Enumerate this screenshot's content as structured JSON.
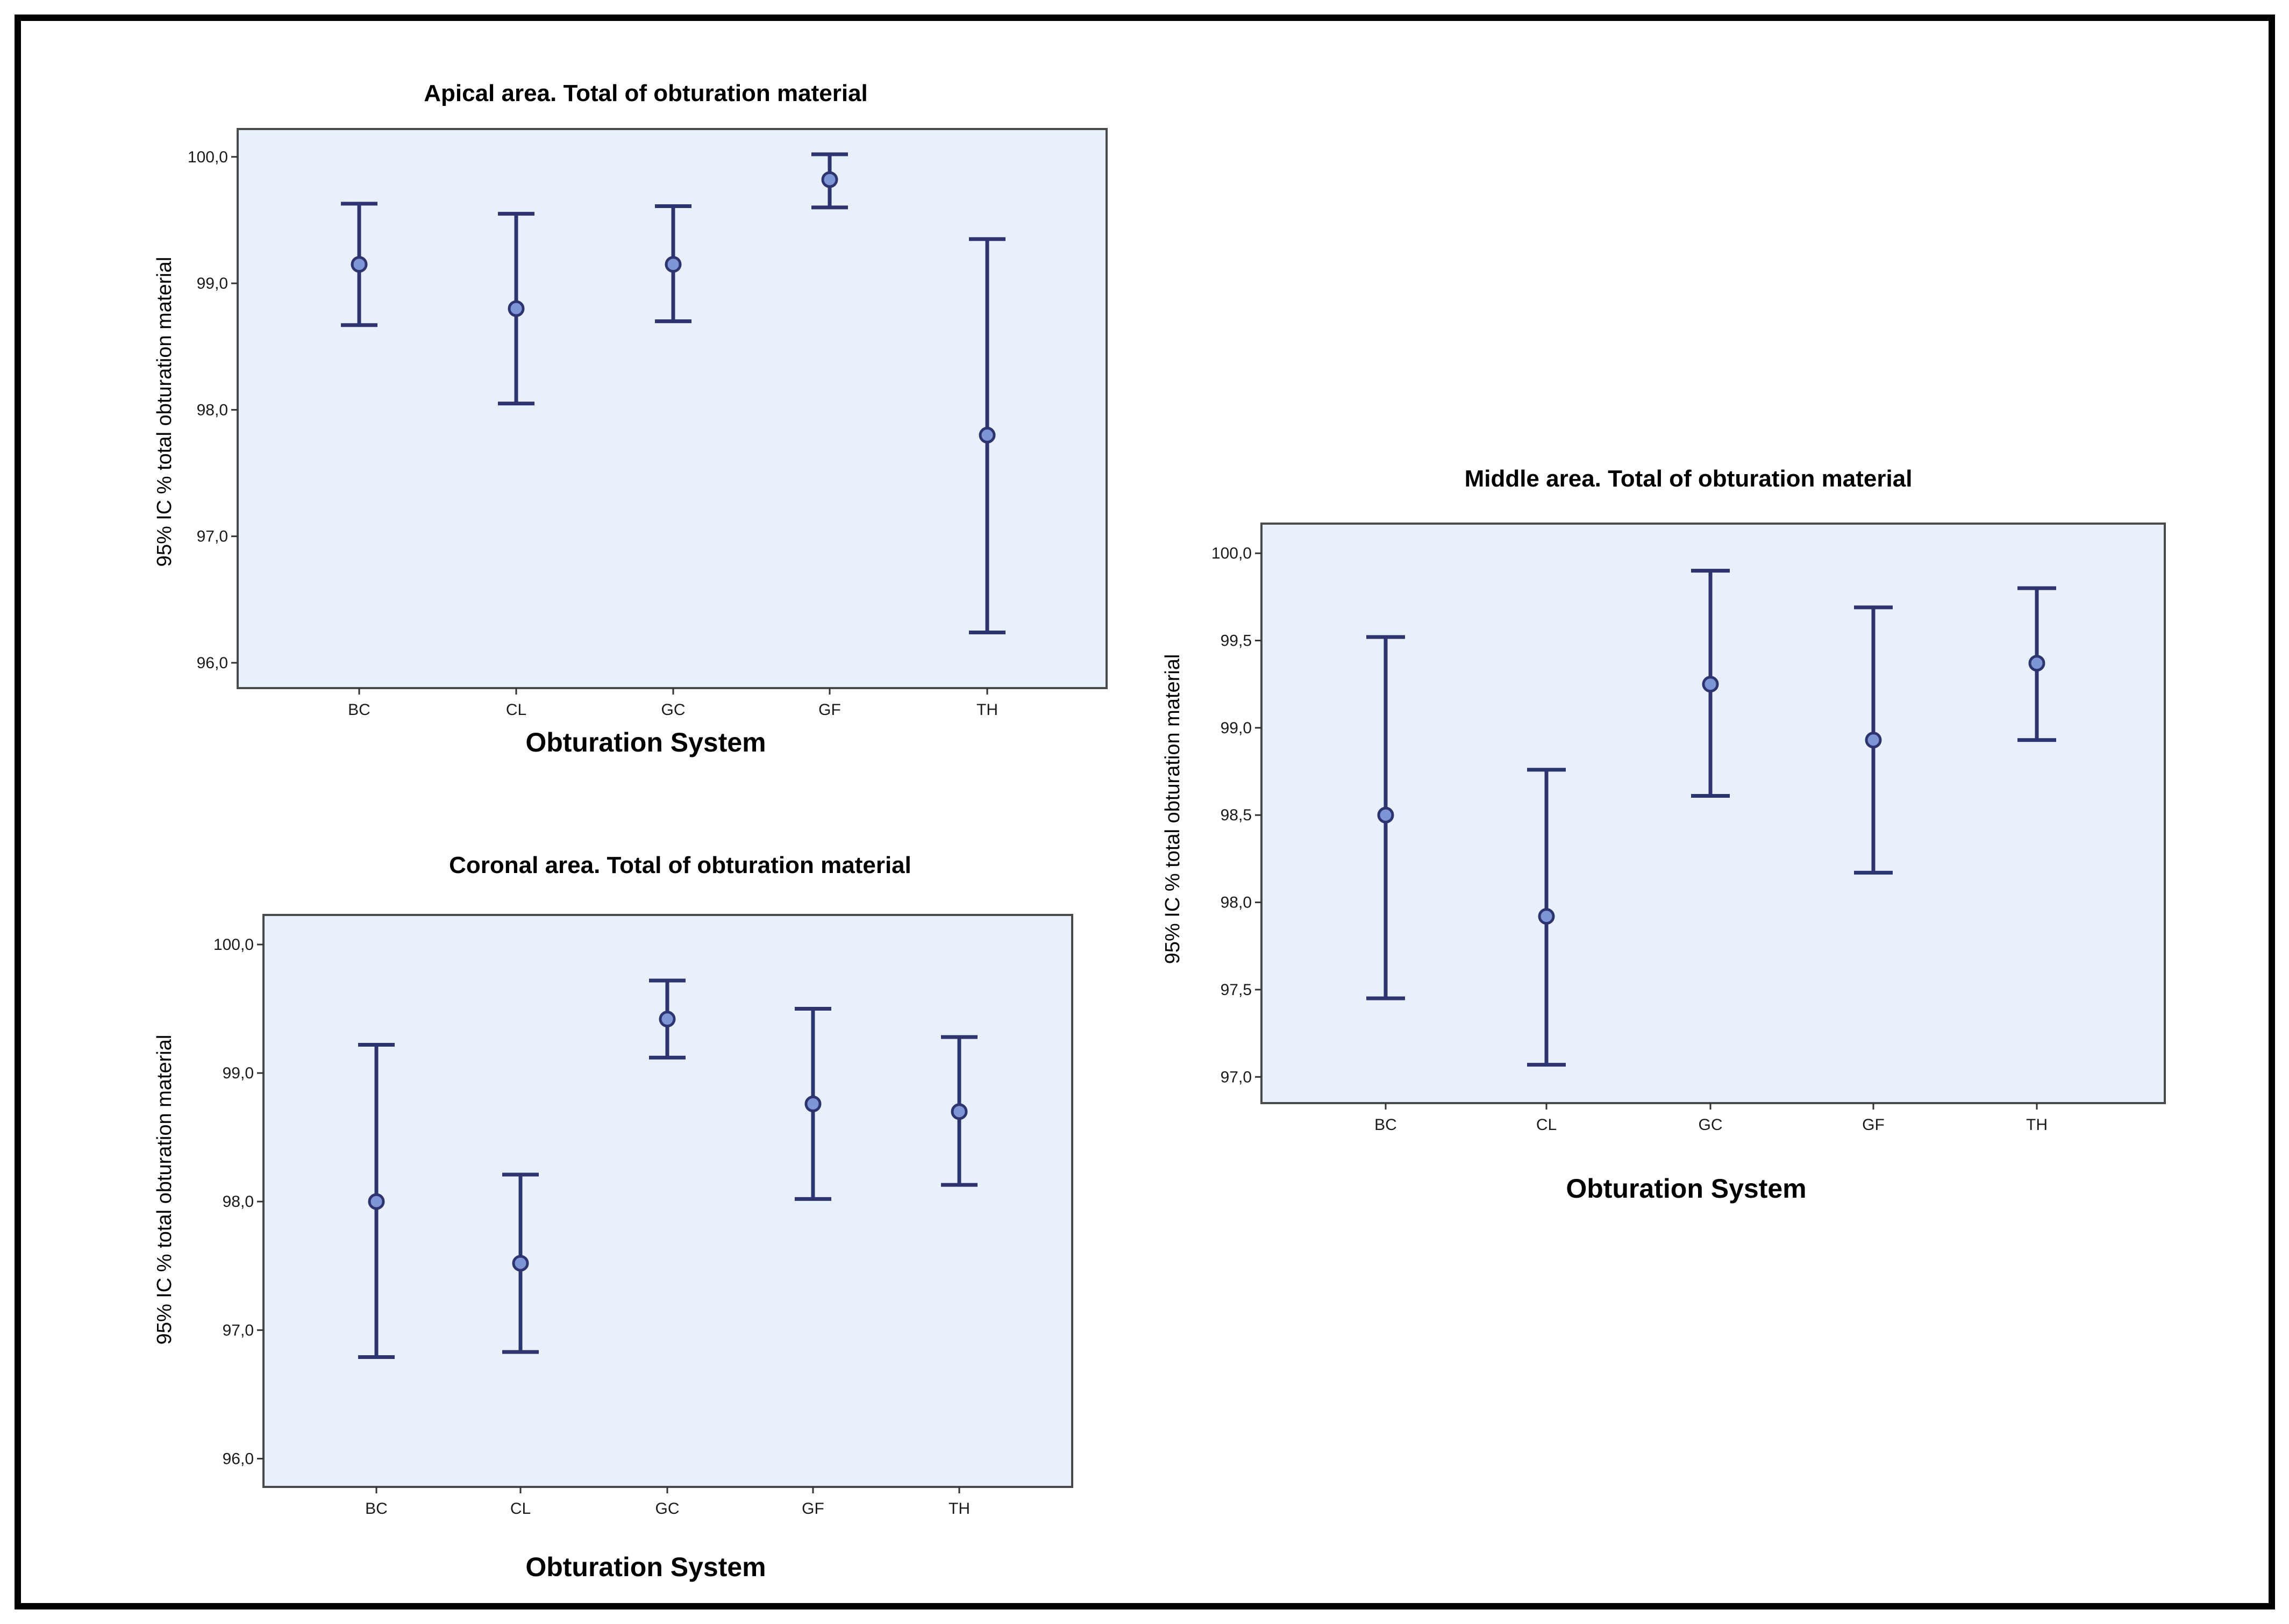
{
  "chart_data": [
    {
      "type": "errorbar",
      "title": "Apical area. Total of obturation material",
      "xlabel": "Obturation System",
      "ylabel": "95% IC % total obturation material",
      "categories": [
        "BC",
        "CL",
        "GC",
        "GF",
        "TH"
      ],
      "means": [
        99.15,
        98.8,
        99.15,
        99.82,
        97.8
      ],
      "lower": [
        98.67,
        98.05,
        98.7,
        99.6,
        96.24
      ],
      "upper": [
        99.63,
        99.55,
        99.61,
        100.02,
        99.35
      ],
      "ylim": [
        95.8,
        100.22
      ],
      "yticks": [
        96.0,
        97.0,
        98.0,
        99.0,
        100.0
      ],
      "ytick_labels": [
        "96,0",
        "97,0",
        "98,0",
        "99,0",
        "100,0"
      ]
    },
    {
      "type": "errorbar",
      "title": "Coronal area. Total of obturation material",
      "xlabel": "Obturation System",
      "ylabel": "95% IC % total obturation material",
      "categories": [
        "BC",
        "CL",
        "GC",
        "GF",
        "TH"
      ],
      "means": [
        98.0,
        97.52,
        99.42,
        98.76,
        98.7
      ],
      "lower": [
        96.79,
        96.83,
        99.12,
        98.02,
        98.13
      ],
      "upper": [
        99.22,
        98.21,
        99.72,
        99.5,
        99.28
      ],
      "ylim": [
        95.78,
        100.23
      ],
      "yticks": [
        96.0,
        97.0,
        98.0,
        99.0,
        100.0
      ],
      "ytick_labels": [
        "96,0",
        "97,0",
        "98,0",
        "99,0",
        "100,0"
      ]
    },
    {
      "type": "errorbar",
      "title": "Middle area. Total of obturation material",
      "xlabel": "Obturation System",
      "ylabel": "95% IC % total obturation material",
      "categories": [
        "BC",
        "CL",
        "GC",
        "GF",
        "TH"
      ],
      "means": [
        98.5,
        97.92,
        99.25,
        98.93,
        99.37
      ],
      "lower": [
        97.45,
        97.07,
        98.61,
        98.17,
        98.93
      ],
      "upper": [
        99.52,
        98.76,
        99.9,
        99.69,
        99.8
      ],
      "ylim": [
        96.85,
        100.17
      ],
      "yticks": [
        97.0,
        97.5,
        98.0,
        98.5,
        99.0,
        99.5,
        100.0
      ],
      "ytick_labels": [
        "97,0",
        "97,5",
        "98,0",
        "98,5",
        "99,0",
        "99,5",
        "100,0"
      ]
    }
  ],
  "colors": {
    "plot_background": "#e8f0fb",
    "error_bar": "#2e3470",
    "point_fill": "#7f96d6"
  }
}
